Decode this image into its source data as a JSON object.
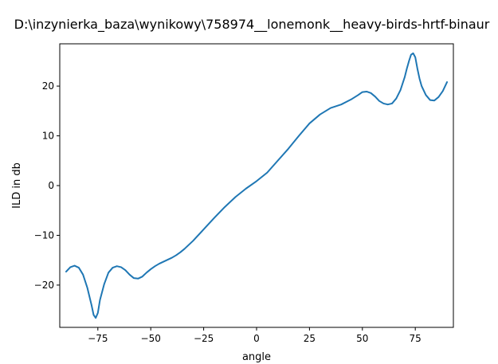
{
  "chart_data": {
    "type": "line",
    "title": "D:\\inzynierka_baza\\wynikowy\\758974__lonemonk__heavy-birds-hrtf-binaur",
    "xlabel": "angle",
    "ylabel": "ILD in db",
    "xlim": [
      -93,
      93
    ],
    "ylim": [
      -28.5,
      28.5
    ],
    "xticks": [
      -75,
      -50,
      -25,
      0,
      25,
      50,
      75
    ],
    "xtick_labels": [
      "−75",
      "−50",
      "−25",
      "0",
      "25",
      "50",
      "75"
    ],
    "yticks": [
      -20,
      -10,
      0,
      10,
      20
    ],
    "ytick_labels": [
      "−20",
      "−10",
      "0",
      "10",
      "20"
    ],
    "grid": false,
    "line_color": "#1f77b4",
    "series": [
      {
        "x": [
          -90,
          -88,
          -86,
          -84,
          -82,
          -80,
          -78,
          -77,
          -76,
          -75,
          -74,
          -72,
          -70,
          -68,
          -66,
          -64,
          -62,
          -60,
          -58,
          -56,
          -54,
          -52,
          -50,
          -48,
          -46,
          -44,
          -42,
          -40,
          -38,
          -36,
          -34,
          -32,
          -30,
          -25,
          -20,
          -15,
          -10,
          -5,
          0,
          5,
          10,
          15,
          20,
          25,
          30,
          35,
          40,
          45,
          48,
          50,
          52,
          54,
          56,
          58,
          60,
          62,
          64,
          66,
          68,
          70,
          71,
          72,
          73,
          74,
          75,
          76,
          77,
          78,
          80,
          82,
          84,
          86,
          88,
          90
        ],
        "y": [
          -17.3,
          -16.4,
          -16.1,
          -16.5,
          -17.9,
          -20.5,
          -24.0,
          -26.0,
          -26.6,
          -25.6,
          -23.0,
          -19.8,
          -17.5,
          -16.5,
          -16.2,
          -16.4,
          -17.0,
          -17.9,
          -18.6,
          -18.7,
          -18.3,
          -17.5,
          -16.8,
          -16.2,
          -15.7,
          -15.3,
          -14.9,
          -14.5,
          -14.0,
          -13.4,
          -12.7,
          -11.9,
          -11.1,
          -8.8,
          -6.5,
          -4.3,
          -2.3,
          -0.6,
          0.9,
          2.6,
          5.0,
          7.4,
          10.0,
          12.5,
          14.3,
          15.6,
          16.3,
          17.4,
          18.2,
          18.8,
          18.9,
          18.6,
          17.9,
          17.0,
          16.5,
          16.3,
          16.5,
          17.5,
          19.2,
          21.8,
          23.5,
          25.0,
          26.3,
          26.6,
          25.8,
          23.5,
          21.5,
          20.0,
          18.2,
          17.2,
          17.1,
          17.8,
          19.0,
          20.8
        ]
      }
    ]
  }
}
